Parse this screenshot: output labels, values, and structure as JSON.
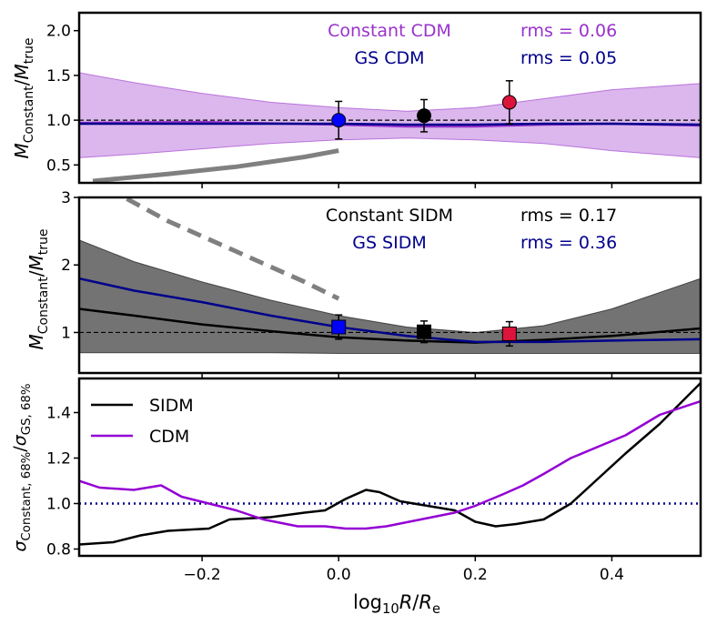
{
  "chart_data": {
    "type": "line",
    "shared_x": {
      "label": "log10 R/Re",
      "xlim": [
        -0.38,
        0.53
      ],
      "ticks": [
        -0.2,
        0.0,
        0.2,
        0.4
      ],
      "tick_labels": [
        "−0.2",
        "0.0",
        "0.2",
        "0.4"
      ]
    },
    "panels": [
      {
        "id": "top",
        "ylabel": "M_Constant / M_true",
        "ylim": [
          0.3,
          2.2
        ],
        "yticks": [
          0.5,
          1.0,
          1.5,
          2.0
        ],
        "ytick_labels": [
          "0.5",
          "1.0",
          "1.5",
          "2.0"
        ],
        "reference_line": 1.0,
        "legend_rows": [
          {
            "label": "Constant CDM",
            "rms": "rms = 0.06",
            "color": "#9932CC"
          },
          {
            "label": "GS CDM",
            "rms": "rms = 0.05",
            "color": "#00008B"
          }
        ],
        "band": {
          "color": "#9932CC",
          "x": [
            -0.38,
            -0.3,
            -0.2,
            -0.1,
            0.0,
            0.1,
            0.2,
            0.3,
            0.4,
            0.53
          ],
          "upper": [
            1.53,
            1.42,
            1.3,
            1.2,
            1.14,
            1.1,
            1.14,
            1.24,
            1.34,
            1.41
          ],
          "lower": [
            0.58,
            0.62,
            0.68,
            0.74,
            0.78,
            0.8,
            0.78,
            0.74,
            0.66,
            0.58
          ]
        },
        "series": [
          {
            "name": "Constant CDM",
            "color": "#9932CC",
            "x": [
              -0.38,
              -0.2,
              0.0,
              0.1,
              0.2,
              0.3,
              0.4,
              0.53
            ],
            "y": [
              0.97,
              0.98,
              0.95,
              0.93,
              0.93,
              0.95,
              0.96,
              0.94
            ]
          },
          {
            "name": "GS CDM",
            "color": "#00008B",
            "x": [
              -0.38,
              -0.2,
              0.0,
              0.1,
              0.2,
              0.3,
              0.4,
              0.53
            ],
            "y": [
              0.96,
              0.96,
              0.96,
              0.95,
              0.95,
              0.96,
              0.96,
              0.95
            ]
          },
          {
            "name": "reference curve",
            "color": "#808080",
            "style": "solid",
            "x": [
              -0.36,
              -0.25,
              -0.15,
              -0.05,
              0.0
            ],
            "y": [
              0.32,
              0.4,
              0.48,
              0.59,
              0.66
            ]
          }
        ],
        "points": [
          {
            "x": 0.0,
            "y": 1.0,
            "err_low": 0.21,
            "err_high": 0.21,
            "color": "#0000FF",
            "marker": "circle"
          },
          {
            "x": 0.125,
            "y": 1.05,
            "err_low": 0.18,
            "err_high": 0.18,
            "color": "#000000",
            "marker": "circle"
          },
          {
            "x": 0.25,
            "y": 1.2,
            "err_low": 0.24,
            "err_high": 0.24,
            "color": "#DC143C",
            "marker": "circle"
          }
        ]
      },
      {
        "id": "middle",
        "ylabel": "M_Constant / M_true",
        "ylim": [
          0.4,
          3.0
        ],
        "yticks": [
          1,
          2,
          3
        ],
        "ytick_labels": [
          "1",
          "2",
          "3"
        ],
        "reference_line": 1.0,
        "legend_rows": [
          {
            "label": "Constant SIDM",
            "rms": "rms = 0.17",
            "color": "#000000"
          },
          {
            "label": "GS SIDM",
            "rms": "rms = 0.36",
            "color": "#00008B"
          }
        ],
        "band": {
          "color": "#000000",
          "x": [
            -0.38,
            -0.3,
            -0.2,
            -0.1,
            0.0,
            0.1,
            0.2,
            0.3,
            0.4,
            0.53
          ],
          "upper": [
            2.37,
            2.05,
            1.75,
            1.48,
            1.25,
            1.08,
            1.0,
            1.1,
            1.35,
            1.8
          ],
          "lower": [
            0.7,
            0.7,
            0.7,
            0.7,
            0.69,
            0.69,
            0.69,
            0.69,
            0.69,
            0.69
          ]
        },
        "series": [
          {
            "name": "Constant SIDM",
            "color": "#000000",
            "x": [
              -0.38,
              -0.3,
              -0.2,
              -0.1,
              0.0,
              0.1,
              0.2,
              0.3,
              0.4,
              0.53
            ],
            "y": [
              1.35,
              1.25,
              1.12,
              1.02,
              0.93,
              0.88,
              0.85,
              0.89,
              0.95,
              1.06
            ]
          },
          {
            "name": "GS SIDM",
            "color": "#00008B",
            "x": [
              -0.38,
              -0.3,
              -0.2,
              -0.1,
              0.0,
              0.1,
              0.2,
              0.3,
              0.4,
              0.53
            ],
            "y": [
              1.8,
              1.62,
              1.45,
              1.25,
              1.08,
              0.95,
              0.86,
              0.86,
              0.88,
              0.9
            ]
          },
          {
            "name": "reference curve",
            "color": "#808080",
            "style": "dashed",
            "x": [
              -0.31,
              -0.25,
              -0.15,
              -0.05,
              0.0
            ],
            "y": [
              2.98,
              2.65,
              2.2,
              1.75,
              1.5
            ]
          }
        ],
        "points": [
          {
            "x": 0.0,
            "y": 1.08,
            "err_low": 0.18,
            "err_high": 0.18,
            "color": "#0000FF",
            "marker": "square"
          },
          {
            "x": 0.125,
            "y": 1.01,
            "err_low": 0.16,
            "err_high": 0.16,
            "color": "#000000",
            "marker": "square"
          },
          {
            "x": 0.25,
            "y": 0.98,
            "err_low": 0.18,
            "err_high": 0.18,
            "color": "#DC143C",
            "marker": "square"
          }
        ]
      },
      {
        "id": "bottom",
        "ylabel": "σ Constant, 68% / σ GS, 68%",
        "ylim": [
          0.77,
          1.55
        ],
        "yticks": [
          0.8,
          1.0,
          1.2,
          1.4
        ],
        "ytick_labels": [
          "0.8",
          "1.0",
          "1.2",
          "1.4"
        ],
        "reference_line": 1.0,
        "legend_entries": [
          {
            "label": "SIDM",
            "color": "#000000"
          },
          {
            "label": "CDM",
            "color": "#9400D3"
          }
        ],
        "series": [
          {
            "name": "SIDM",
            "color": "#000000",
            "x": [
              -0.38,
              -0.33,
              -0.29,
              -0.25,
              -0.19,
              -0.16,
              -0.1,
              -0.05,
              -0.02,
              0.01,
              0.04,
              0.06,
              0.09,
              0.13,
              0.17,
              0.2,
              0.23,
              0.26,
              0.3,
              0.34,
              0.38,
              0.42,
              0.47,
              0.53
            ],
            "y": [
              0.82,
              0.83,
              0.86,
              0.88,
              0.89,
              0.93,
              0.94,
              0.96,
              0.97,
              1.02,
              1.06,
              1.05,
              1.01,
              0.99,
              0.97,
              0.92,
              0.9,
              0.91,
              0.93,
              1.0,
              1.11,
              1.22,
              1.35,
              1.53
            ]
          },
          {
            "name": "CDM",
            "color": "#9400D3",
            "x": [
              -0.38,
              -0.35,
              -0.3,
              -0.26,
              -0.23,
              -0.19,
              -0.15,
              -0.11,
              -0.06,
              -0.02,
              0.01,
              0.04,
              0.07,
              0.12,
              0.17,
              0.2,
              0.24,
              0.27,
              0.3,
              0.34,
              0.38,
              0.42,
              0.47,
              0.53
            ],
            "y": [
              1.1,
              1.07,
              1.06,
              1.08,
              1.03,
              1.0,
              0.97,
              0.93,
              0.9,
              0.9,
              0.89,
              0.89,
              0.9,
              0.93,
              0.96,
              0.99,
              1.04,
              1.08,
              1.13,
              1.2,
              1.25,
              1.3,
              1.39,
              1.45
            ]
          }
        ],
        "reference_color": "#00008B"
      }
    ]
  }
}
